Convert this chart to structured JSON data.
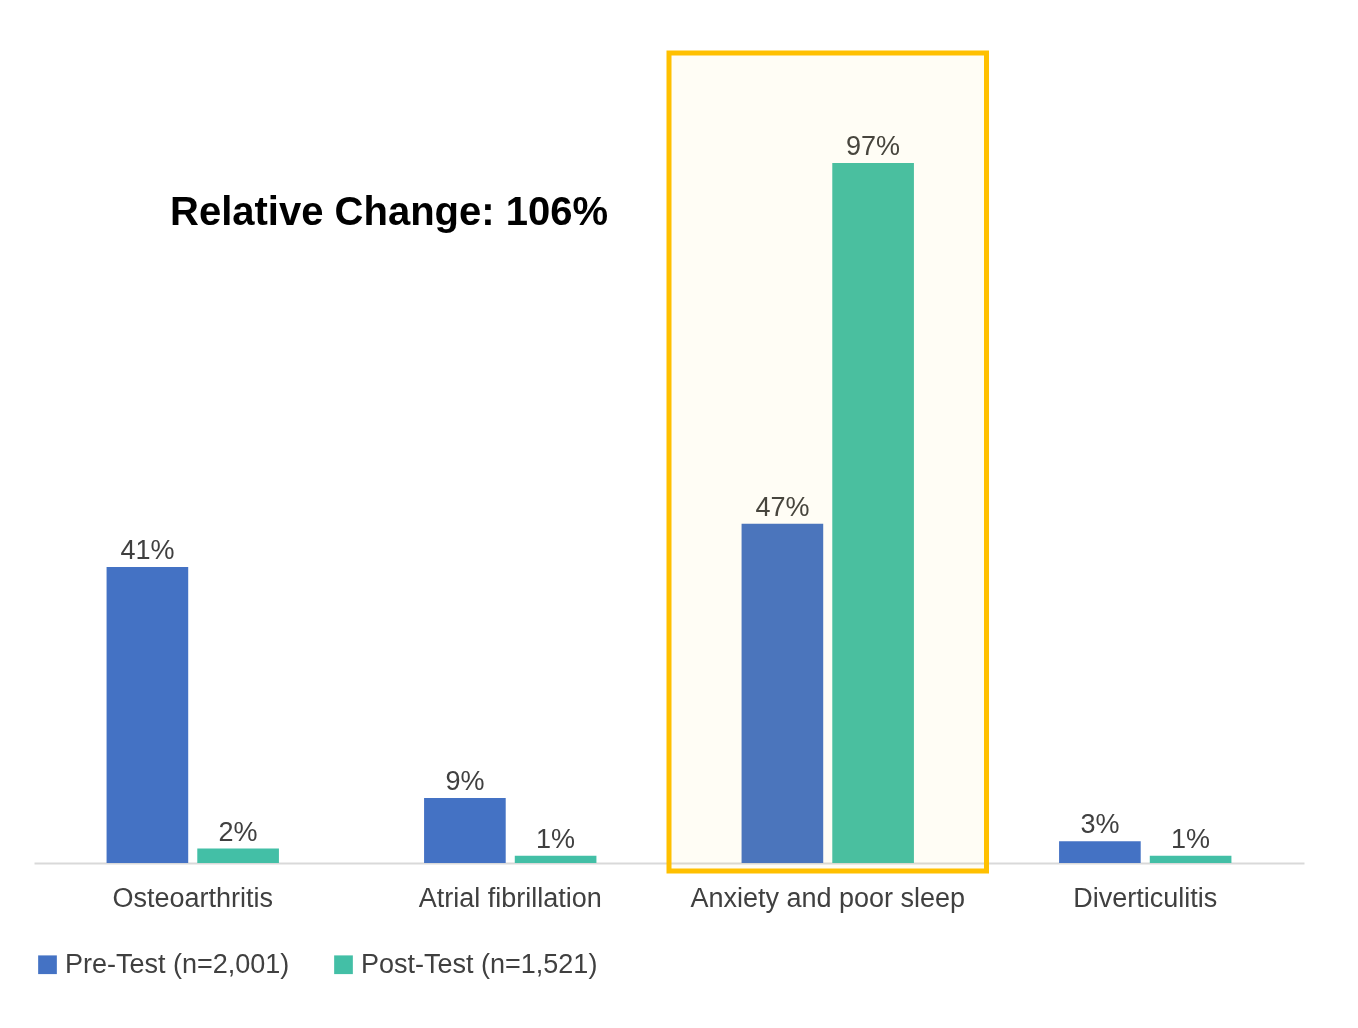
{
  "chart_data": {
    "type": "bar",
    "categories": [
      "Osteoarthritis",
      "Atrial fibrillation",
      "Anxiety and poor sleep",
      "Diverticulitis"
    ],
    "series": [
      {
        "name": "Pre-Test (n=2,001)",
        "color": "#4472c4",
        "values": [
          41,
          9,
          47,
          3
        ],
        "value_labels": [
          "41%",
          "9%",
          "47%",
          "3%"
        ]
      },
      {
        "name": "Post-Test (n=1,521)",
        "color": "#43bfa6",
        "values": [
          2,
          1,
          97,
          1
        ],
        "value_labels": [
          "2%",
          "1%",
          "97%",
          "1%"
        ]
      }
    ],
    "annotations": [
      "Relative Change: 106%"
    ],
    "bands": [
      {
        "axis": "x",
        "from": "Anxiety and poor sleep",
        "to": "Anxiety and poor sleep",
        "color": "#ffc000"
      }
    ],
    "legend": "bottom",
    "grid": false
  }
}
